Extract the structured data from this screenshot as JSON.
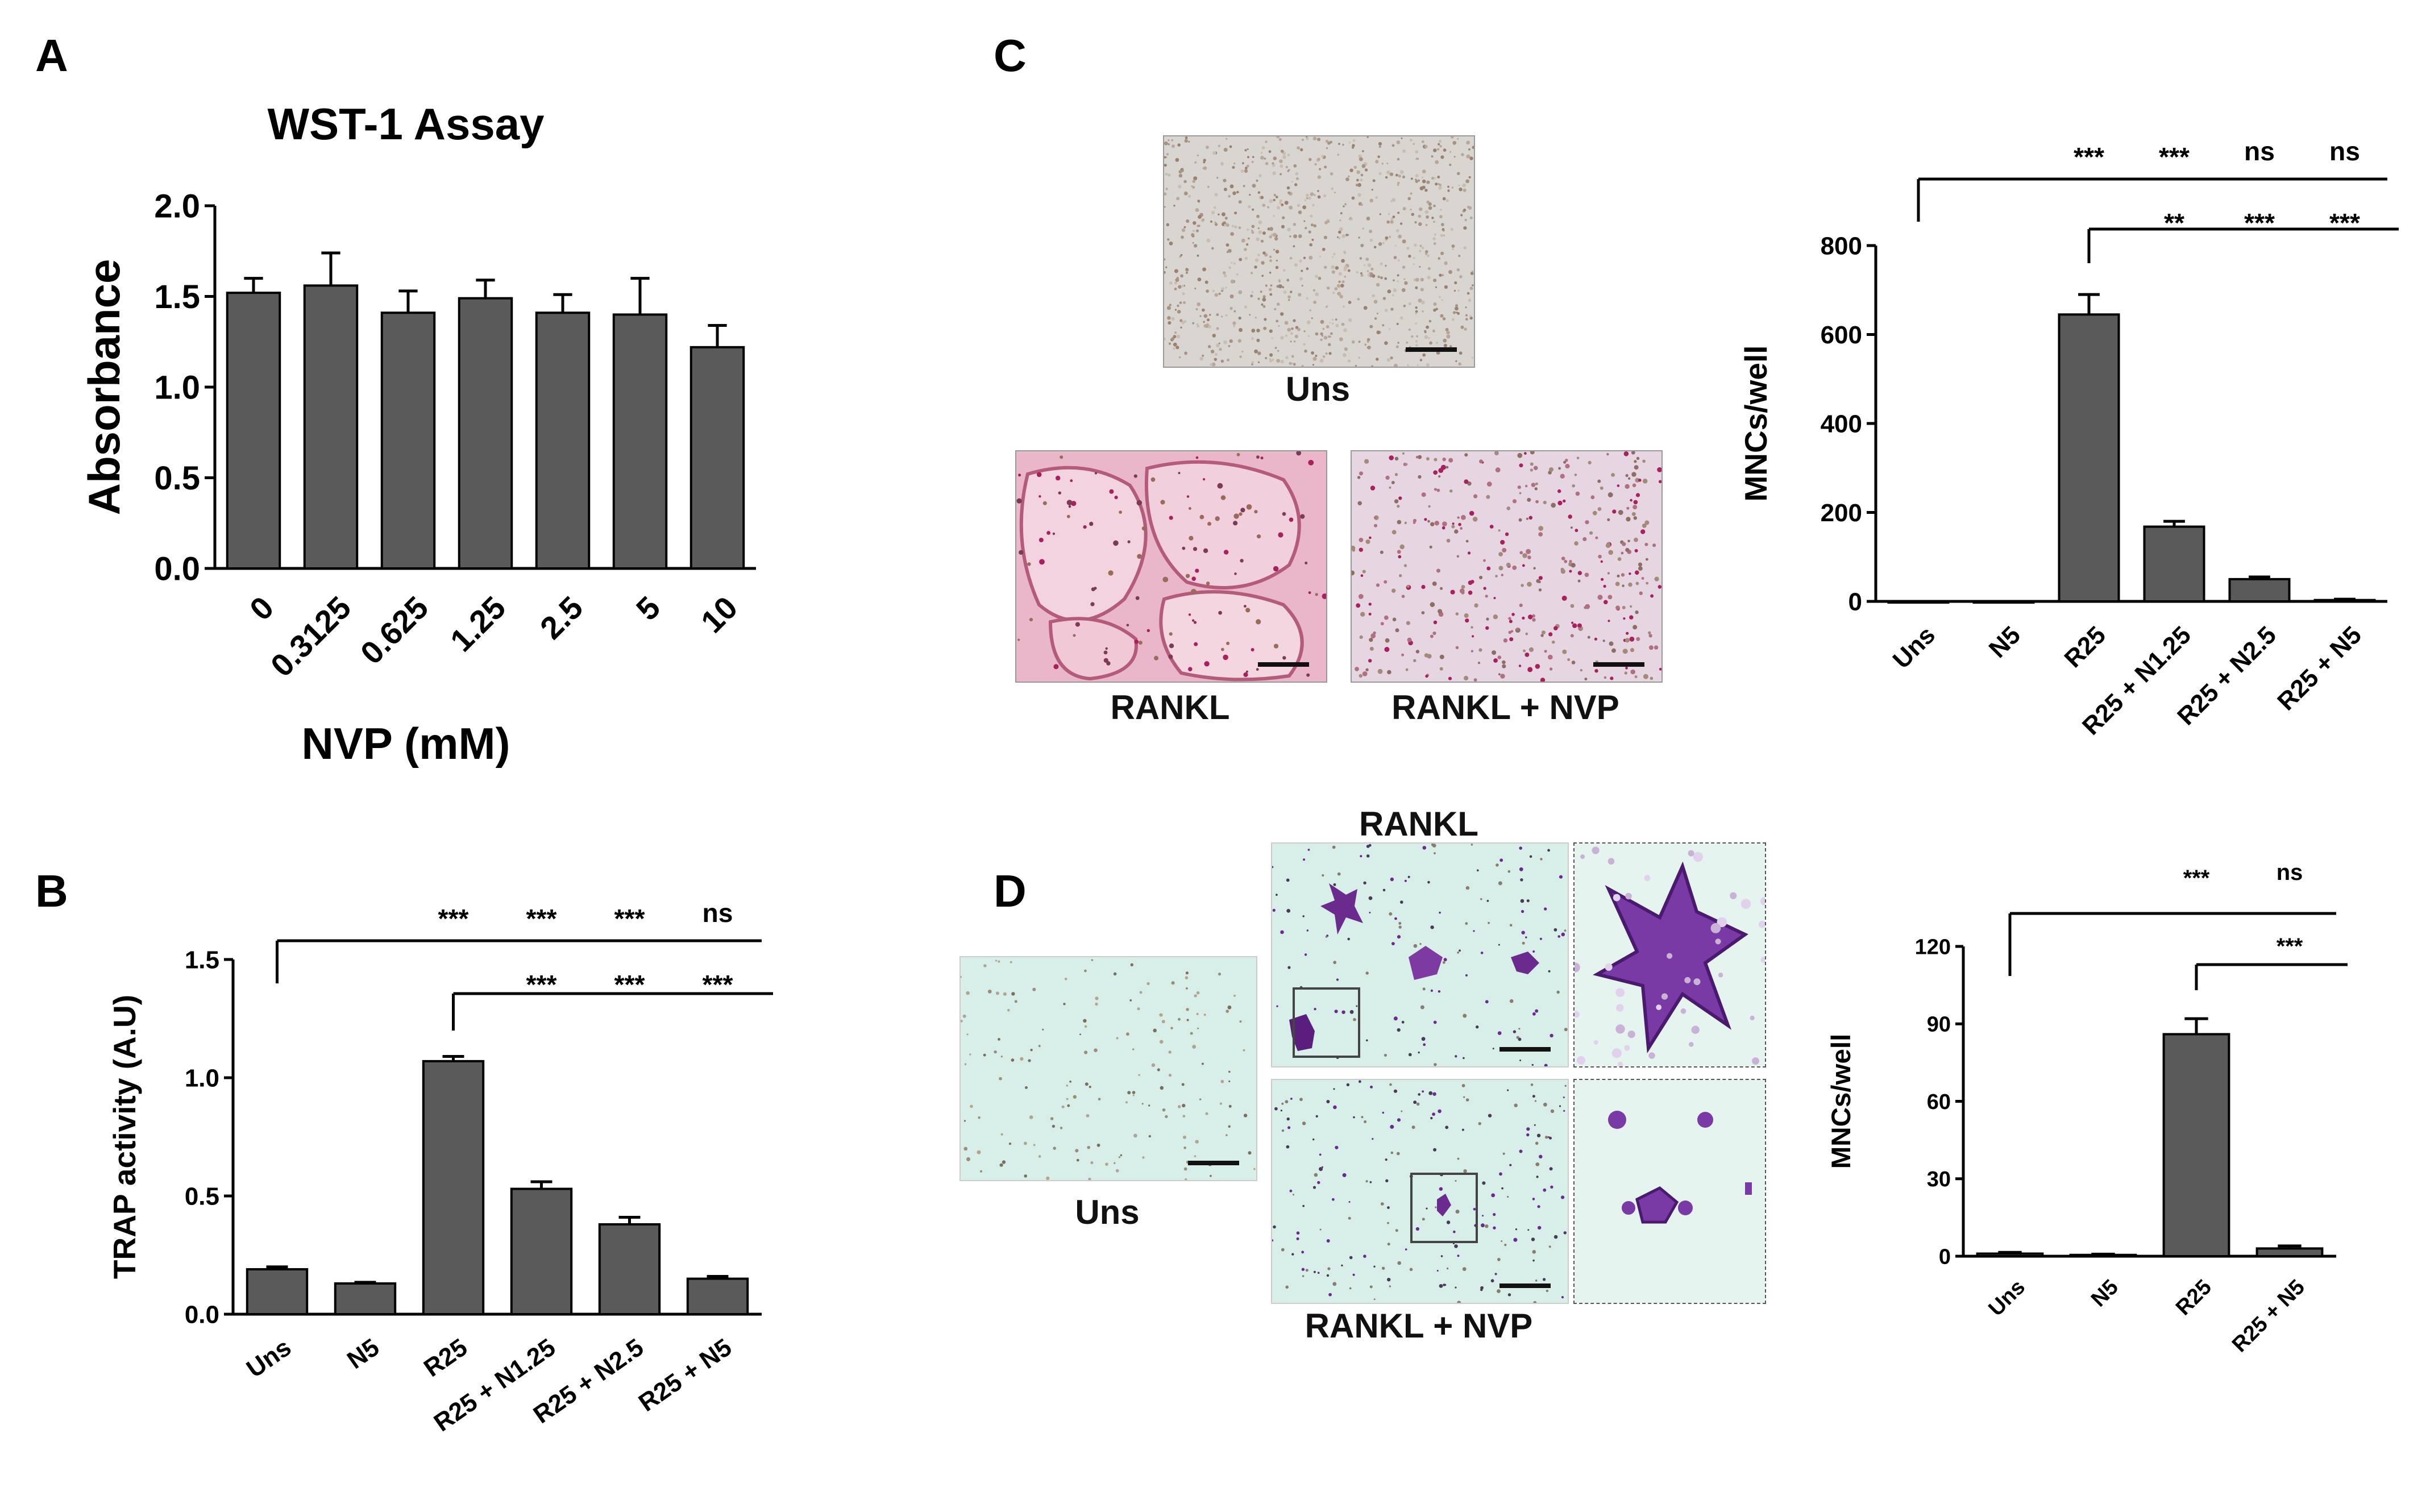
{
  "panels": {
    "A": {
      "letter": "A"
    },
    "B": {
      "letter": "B"
    },
    "C": {
      "letter": "C"
    },
    "D": {
      "letter": "D"
    }
  },
  "micrographs": {
    "c_uns": "Uns",
    "c_rankl": "RANKL",
    "c_rankl_nvp": "RANKL + NVP",
    "d_uns": "Uns",
    "d_rankl": "RANKL",
    "d_rankl_nvp": "RANKL + NVP"
  },
  "colors": {
    "bar": "#5a5a5a",
    "trap_pink": "#e9b7c9",
    "trap_stain": "#a8205e",
    "d_background": "#d8efe9",
    "d_stain": "#6a2a8e"
  },
  "chart_data": [
    {
      "id": "A",
      "type": "bar",
      "title": "WST-1 Assay",
      "xlabel": "NVP (mM)",
      "ylabel": "Absorbance",
      "categories": [
        "0",
        "0.3125",
        "0.625",
        "1.25",
        "2.5",
        "5",
        "10"
      ],
      "values": [
        1.52,
        1.56,
        1.41,
        1.49,
        1.41,
        1.4,
        1.22
      ],
      "errors": [
        0.08,
        0.18,
        0.12,
        0.1,
        0.1,
        0.2,
        0.12
      ],
      "ylim": [
        0,
        2.0
      ],
      "yticks": [
        "0.0",
        "0.5",
        "1.0",
        "1.5",
        "2.0"
      ],
      "significance": []
    },
    {
      "id": "B",
      "type": "bar",
      "title": "",
      "xlabel": "",
      "ylabel": "TRAP activity (A.U)",
      "categories": [
        "Uns",
        "N5",
        "R25",
        "R25 + N1.25",
        "R25 + N2.5",
        "R25 + N5"
      ],
      "values": [
        0.19,
        0.13,
        1.07,
        0.53,
        0.38,
        0.15
      ],
      "errors": [
        0.01,
        0.005,
        0.02,
        0.03,
        0.03,
        0.01
      ],
      "ylim": [
        0,
        1.5
      ],
      "yticks": [
        "0.0",
        "0.5",
        "1.0",
        "1.5"
      ],
      "significance": [
        {
          "from": 0,
          "labels": [
            "***",
            "***",
            "***",
            "ns"
          ],
          "targets": [
            2,
            3,
            4,
            5
          ]
        },
        {
          "from": 2,
          "labels": [
            "***",
            "***",
            "***"
          ],
          "targets": [
            3,
            4,
            5
          ]
        }
      ]
    },
    {
      "id": "C",
      "type": "bar",
      "title": "",
      "xlabel": "",
      "ylabel": "MNCs/well",
      "categories": [
        "Uns",
        "N5",
        "R25",
        "R25 + N1.25",
        "R25 + N2.5",
        "R25 + N5"
      ],
      "values": [
        0,
        0,
        645,
        168,
        50,
        3
      ],
      "errors": [
        0,
        0,
        45,
        12,
        5,
        2
      ],
      "ylim": [
        0,
        800
      ],
      "yticks": [
        "0",
        "200",
        "400",
        "600",
        "800"
      ],
      "significance": [
        {
          "from": 0,
          "labels": [
            "***",
            "***",
            "ns",
            "ns"
          ],
          "targets": [
            2,
            3,
            4,
            5
          ]
        },
        {
          "from": 2,
          "labels": [
            "**",
            "***",
            "***"
          ],
          "targets": [
            3,
            4,
            5
          ]
        }
      ]
    },
    {
      "id": "D",
      "type": "bar",
      "title": "",
      "xlabel": "",
      "ylabel": "MNCs/well",
      "categories": [
        "Uns",
        "N5",
        "R25",
        "R25 + N5"
      ],
      "values": [
        1,
        0.5,
        86,
        3
      ],
      "errors": [
        0.5,
        0.3,
        6,
        1
      ],
      "ylim": [
        0,
        120
      ],
      "yticks": [
        "0",
        "30",
        "60",
        "90",
        "120"
      ],
      "significance": [
        {
          "from": 0,
          "labels": [
            "***",
            "ns"
          ],
          "targets": [
            2,
            3
          ]
        },
        {
          "from": 2,
          "labels": [
            "***"
          ],
          "targets": [
            3
          ]
        }
      ]
    }
  ]
}
